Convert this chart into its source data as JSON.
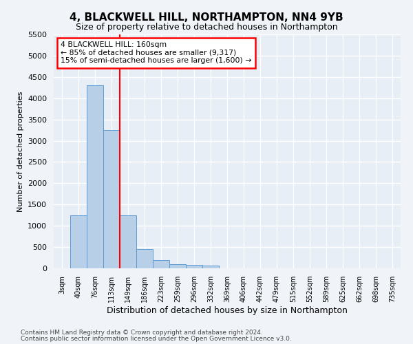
{
  "title": "4, BLACKWELL HILL, NORTHAMPTON, NN4 9YB",
  "subtitle": "Size of property relative to detached houses in Northampton",
  "xlabel": "Distribution of detached houses by size in Northampton",
  "ylabel": "Number of detached properties",
  "categories": [
    "3sqm",
    "40sqm",
    "76sqm",
    "113sqm",
    "149sqm",
    "186sqm",
    "223sqm",
    "259sqm",
    "296sqm",
    "332sqm",
    "369sqm",
    "406sqm",
    "442sqm",
    "479sqm",
    "515sqm",
    "552sqm",
    "589sqm",
    "625sqm",
    "662sqm",
    "698sqm",
    "735sqm"
  ],
  "bar_values": [
    0,
    1250,
    4300,
    3250,
    1250,
    450,
    200,
    100,
    80,
    60,
    0,
    0,
    0,
    0,
    0,
    0,
    0,
    0,
    0,
    0,
    0
  ],
  "bar_color": "#b8cfe8",
  "bar_edgecolor": "#5b9bd5",
  "ylim": [
    0,
    5500
  ],
  "yticks": [
    0,
    500,
    1000,
    1500,
    2000,
    2500,
    3000,
    3500,
    4000,
    4500,
    5000,
    5500
  ],
  "redline_x": 3.5,
  "annotation_line1": "4 BLACKWELL HILL: 160sqm",
  "annotation_line2": "← 85% of detached houses are smaller (9,317)",
  "annotation_line3": "15% of semi-detached houses are larger (1,600) →",
  "bg_color": "#e8eef5",
  "grid_color": "#ffffff",
  "fig_bg": "#f0f4f8",
  "footer1": "Contains HM Land Registry data © Crown copyright and database right 2024.",
  "footer2": "Contains public sector information licensed under the Open Government Licence v3.0."
}
